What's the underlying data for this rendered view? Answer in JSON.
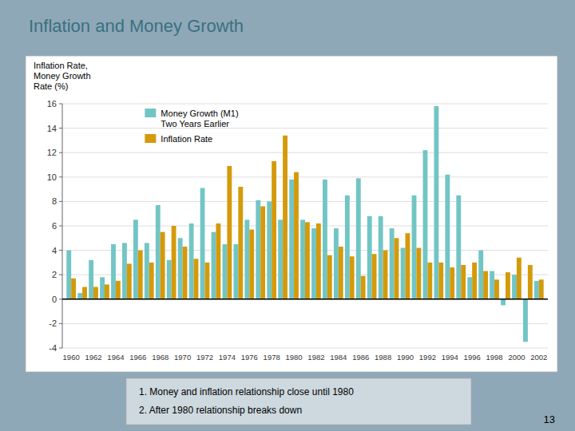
{
  "chart_data": {
    "type": "bar",
    "title": "Inflation and Money Growth",
    "y_label": "Inflation Rate,\nMoney Growth\nRate (%)",
    "categories": [
      "1960",
      null,
      "1962",
      null,
      "1964",
      null,
      "1966",
      null,
      "1968",
      null,
      "1970",
      null,
      "1972",
      null,
      "1974",
      null,
      "1976",
      null,
      "1978",
      null,
      "1980",
      null,
      "1982",
      null,
      "1984",
      null,
      "1986",
      null,
      "1988",
      null,
      "1990",
      null,
      "1992",
      null,
      "1994",
      null,
      "1996",
      null,
      "1998",
      null,
      "2000",
      null,
      "2002"
    ],
    "series": [
      {
        "name": "Money Growth (M1)\nTwo Years Earlier",
        "color": "#72c5c5",
        "values": [
          4.0,
          0.5,
          3.2,
          1.8,
          4.5,
          4.6,
          6.5,
          4.6,
          7.7,
          3.2,
          5.0,
          6.2,
          9.1,
          5.5,
          4.5,
          4.5,
          6.5,
          8.1,
          8.0,
          6.5,
          9.8,
          6.5,
          5.8,
          9.8,
          5.8,
          8.5,
          9.9,
          6.8,
          6.8,
          5.8,
          4.2,
          8.5,
          12.2,
          15.8,
          10.2,
          8.5,
          1.8,
          4.0,
          2.3,
          -0.5,
          2.0,
          -3.5,
          1.5
        ]
      },
      {
        "name": "Inflation Rate",
        "color": "#d49a0a",
        "values": [
          1.7,
          1.0,
          1.0,
          1.2,
          1.5,
          2.9,
          4.0,
          3.0,
          5.5,
          6.0,
          4.3,
          3.3,
          3.0,
          6.2,
          10.9,
          9.2,
          5.7,
          7.6,
          11.3,
          13.4,
          10.4,
          6.3,
          6.2,
          3.6,
          4.3,
          3.5,
          1.9,
          3.7,
          4.0,
          5.0,
          5.4,
          4.2,
          3.0,
          3.0,
          2.6,
          2.8,
          3.0,
          2.3,
          1.6,
          2.2,
          3.4,
          2.8,
          1.6
        ]
      }
    ],
    "ylim": [
      -4,
      16
    ],
    "yticks": [
      -4,
      -2,
      0,
      2,
      4,
      6,
      8,
      10,
      12,
      14,
      16
    ],
    "grid": true,
    "legend": "upper left",
    "notes": [
      "1.   Money and inflation relationship close until 1980",
      "2.   After 1980 relationship breaks down"
    ],
    "page_number": "13"
  }
}
